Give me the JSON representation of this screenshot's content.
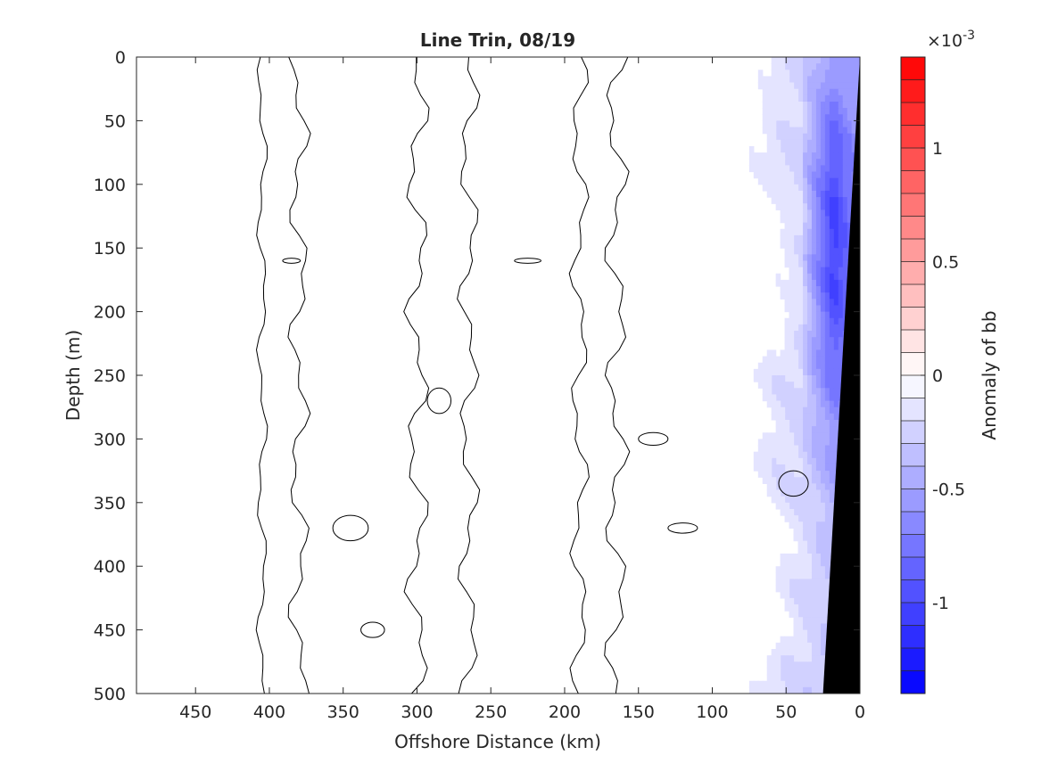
{
  "chart_data": {
    "type": "heatmap",
    "subtype": "filled-contour",
    "title": "Line Trin, 08/19",
    "xlabel": "Offshore Distance (km)",
    "ylabel": "Depth (m)",
    "x_reversed": true,
    "y_reversed": true,
    "xlim": [
      490,
      0
    ],
    "ylim": [
      0,
      500
    ],
    "xticks": [
      450,
      400,
      350,
      300,
      250,
      200,
      150,
      100,
      50,
      0
    ],
    "yticks": [
      0,
      50,
      100,
      150,
      200,
      250,
      300,
      350,
      400,
      450,
      500
    ],
    "colorbar": {
      "label": "Anomaly of bb",
      "exponent_label": "×10",
      "exponent_power": "-3",
      "clim": [
        -1.4,
        1.4
      ],
      "n_levels": 28,
      "ticks": [
        -1,
        -0.5,
        0,
        0.5,
        1
      ],
      "tick_labels": [
        "-1",
        "-0.5",
        "0",
        "0.5",
        "1"
      ],
      "colormap": "blue-white-red",
      "low_color": "#0000ff",
      "high_color": "#ff0000"
    },
    "regions": [
      {
        "name": "nearshore negative anomaly band",
        "x_range": [
          70,
          0
        ],
        "depth_range": [
          0,
          500
        ],
        "min_value": -1.0
      },
      {
        "name": "strongest negative core",
        "x_range": [
          30,
          5
        ],
        "depth_range": [
          40,
          320
        ],
        "value_range": [
          -1.0,
          -0.6
        ]
      }
    ],
    "zero_contours": "black lines",
    "bathymetry": {
      "color": "#000000",
      "points": [
        [
          0,
          0
        ],
        [
          25,
          500
        ]
      ]
    }
  },
  "colors": {
    "shelf": "#000000",
    "zero_contour": "#000000",
    "axis": "#262626"
  }
}
